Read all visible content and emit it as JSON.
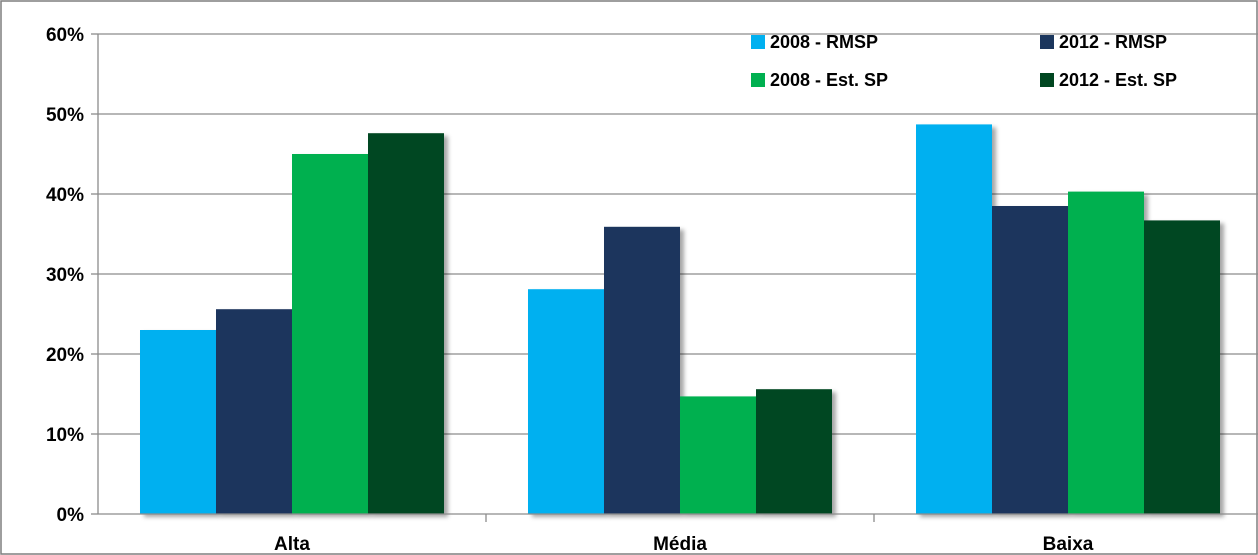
{
  "chart_data": {
    "type": "bar",
    "categories": [
      "Alta",
      "Média",
      "Baixa"
    ],
    "series": [
      {
        "name": "2008 - RMSP",
        "color": "#00B0F0",
        "values": [
          23.0,
          28.1,
          48.7
        ]
      },
      {
        "name": "2012 - RMSP",
        "color": "#1B365D",
        "values": [
          25.6,
          35.9,
          38.5
        ]
      },
      {
        "name": "2008 - Est. SP",
        "color": "#00B050",
        "values": [
          45.0,
          14.7,
          40.3
        ]
      },
      {
        "name": "2012 - Est. SP",
        "color": "#004620",
        "values": [
          47.6,
          15.6,
          36.7
        ]
      }
    ],
    "ylim": [
      0,
      60
    ],
    "yticks": [
      0,
      10,
      20,
      30,
      40,
      50,
      60
    ],
    "ytick_labels": [
      "0%",
      "10%",
      "20%",
      "30%",
      "40%",
      "50%",
      "60%"
    ],
    "grid": true,
    "legend_position": "top-right"
  }
}
